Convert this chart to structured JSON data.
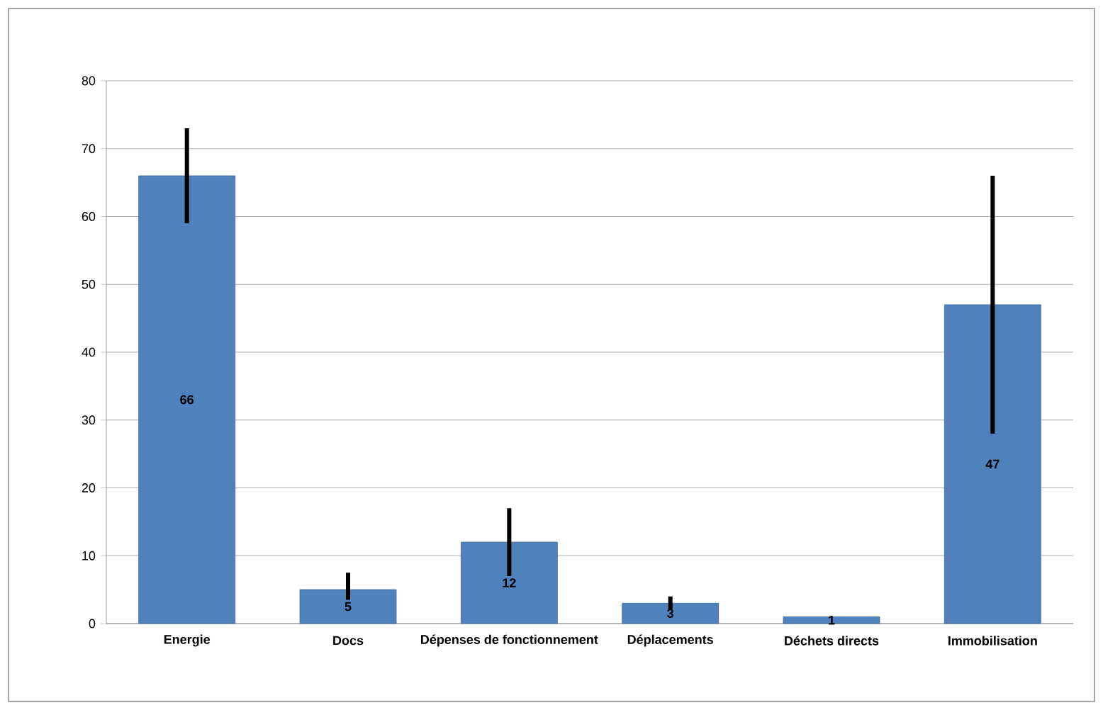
{
  "chart_data": {
    "type": "bar",
    "categories": [
      "Energie",
      "Docs",
      "Dépenses de fonctionnement",
      "Déplacements",
      "Déchets directs",
      "Immobilisation"
    ],
    "values": [
      66,
      5,
      12,
      3,
      1,
      47
    ],
    "errors": [
      [
        59,
        73
      ],
      [
        3.5,
        7.5
      ],
      [
        7,
        17
      ],
      [
        2,
        4
      ],
      null,
      [
        28,
        66
      ]
    ],
    "color": "#4f81bd",
    "data_labels": true,
    "ylim": [
      0,
      80
    ],
    "yticks": [
      0,
      10,
      20,
      30,
      40,
      50,
      60,
      70,
      80
    ],
    "grid": "y"
  }
}
